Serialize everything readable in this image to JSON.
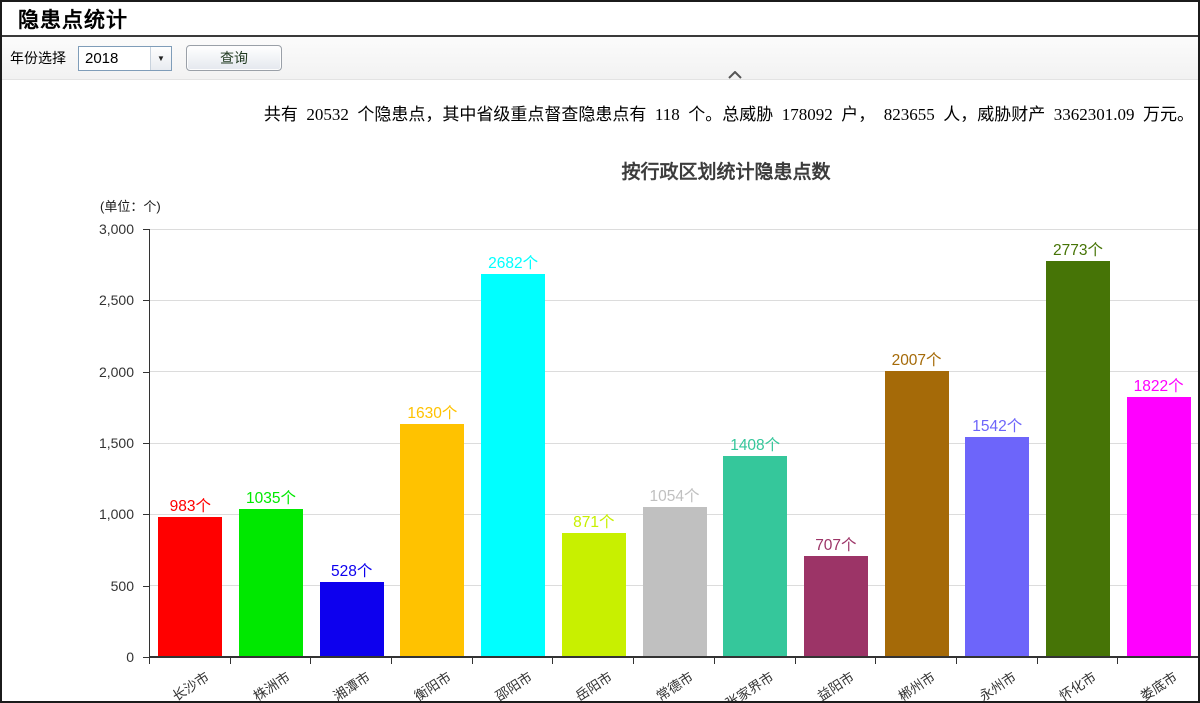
{
  "page": {
    "title": "隐患点统计"
  },
  "toolbar": {
    "year_label": "年份选择",
    "year_value": "2018",
    "dropdown_arrow_icon": "▼",
    "query_button": "查询",
    "collapse_icon": "chevron-up"
  },
  "summary": {
    "text": "共有  20532  个隐患点，其中省级重点督查隐患点有  118  个。总威胁  178092  户，  823655  人，威胁财产  3362301.09  万元。"
  },
  "chart_data": {
    "type": "bar",
    "title": "按行政区划统计隐患点数",
    "unit_label": "(单位：个)",
    "categories": [
      "长沙市",
      "株洲市",
      "湘潭市",
      "衡阳市",
      "邵阳市",
      "岳阳市",
      "常德市",
      "张家界市",
      "益阳市",
      "郴州市",
      "永州市",
      "怀化市",
      "娄底市"
    ],
    "values": [
      983,
      1035,
      528,
      1630,
      2682,
      871,
      1054,
      1408,
      707,
      2007,
      1542,
      2773,
      1822
    ],
    "bar_colors": [
      "#ff0000",
      "#00e800",
      "#0d00ee",
      "#ffc200",
      "#00ffff",
      "#c8f000",
      "#c0c0c0",
      "#35c79b",
      "#9c3467",
      "#a56a08",
      "#6d65fa",
      "#467406",
      "#ff00ff"
    ],
    "value_label_suffix": "个",
    "xlabel": "",
    "ylabel": "(单位：个)",
    "ylim": [
      0,
      3000
    ],
    "ytick_values": [
      0,
      500,
      1000,
      1500,
      2000,
      2500,
      3000
    ],
    "ytick_labels": [
      "0",
      "500",
      "1,000",
      "1,500",
      "2,000",
      "2,500",
      "3,000"
    ],
    "grid": true,
    "legend_position": "none",
    "bar_label_color_matches_bar": true
  }
}
